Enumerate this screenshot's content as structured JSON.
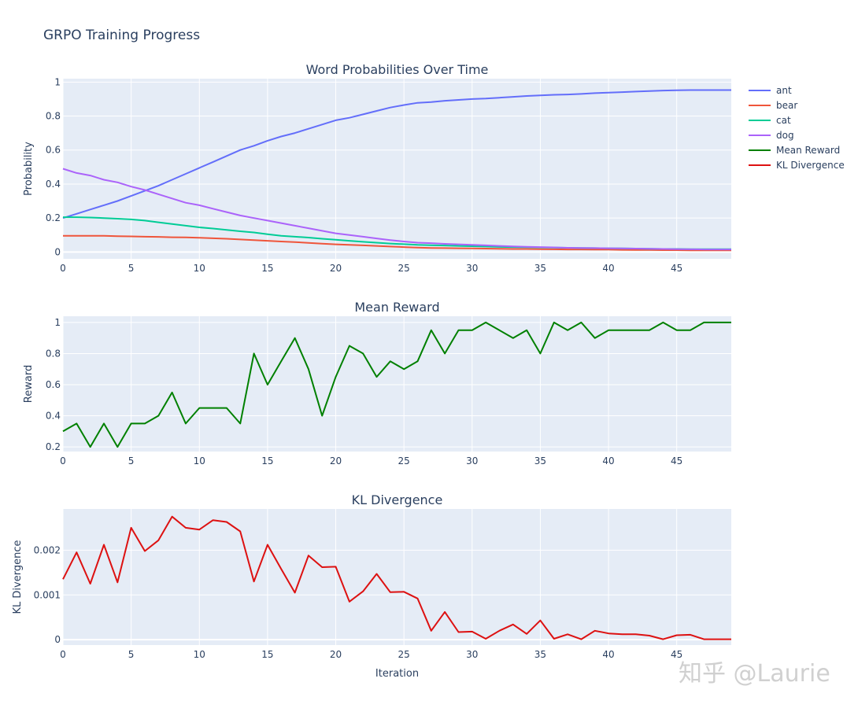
{
  "title": "GRPO Training Progress",
  "watermark": "知乎 @Laurie",
  "legend": [
    {
      "name": "ant",
      "color": "#636efa"
    },
    {
      "name": "bear",
      "color": "#ef553b"
    },
    {
      "name": "cat",
      "color": "#00cc96"
    },
    {
      "name": "dog",
      "color": "#ab63fa"
    },
    {
      "name": "Mean Reward",
      "color": "#008000"
    },
    {
      "name": "KL Divergence",
      "color": "#dd1111"
    }
  ],
  "chart_data": [
    {
      "type": "line",
      "title": "Word Probabilities Over Time",
      "xlabel": "",
      "ylabel": "Probability",
      "xlim": [
        0,
        49
      ],
      "ylim": [
        -0.04,
        1.02
      ],
      "xticks": [
        0,
        5,
        10,
        15,
        20,
        25,
        30,
        35,
        40,
        45
      ],
      "xtick_labels": [
        "0",
        "5",
        "10",
        "15",
        "20",
        "25",
        "30",
        "35",
        "40",
        "45"
      ],
      "yticks": [
        0,
        0.2,
        0.4,
        0.6,
        0.8,
        1
      ],
      "ytick_labels": [
        "0",
        "0.2",
        "0.4",
        "0.6",
        "0.8",
        "1"
      ],
      "x": [
        0,
        1,
        2,
        3,
        4,
        5,
        6,
        7,
        8,
        9,
        10,
        11,
        12,
        13,
        14,
        15,
        16,
        17,
        18,
        19,
        20,
        21,
        22,
        23,
        24,
        25,
        26,
        27,
        28,
        29,
        30,
        31,
        32,
        33,
        34,
        35,
        36,
        37,
        38,
        39,
        40,
        41,
        42,
        43,
        44,
        45,
        46,
        47,
        48,
        49
      ],
      "series": [
        {
          "name": "ant",
          "color": "#636efa",
          "values": [
            0.2,
            0.225,
            0.25,
            0.275,
            0.3,
            0.33,
            0.36,
            0.39,
            0.425,
            0.46,
            0.495,
            0.53,
            0.565,
            0.6,
            0.625,
            0.655,
            0.68,
            0.7,
            0.725,
            0.75,
            0.775,
            0.79,
            0.81,
            0.83,
            0.85,
            0.865,
            0.878,
            0.882,
            0.89,
            0.895,
            0.9,
            0.903,
            0.908,
            0.913,
            0.918,
            0.922,
            0.925,
            0.927,
            0.93,
            0.935,
            0.938,
            0.941,
            0.944,
            0.947,
            0.95,
            0.952,
            0.953,
            0.953,
            0.953,
            0.953
          ]
        },
        {
          "name": "bear",
          "color": "#ef553b",
          "values": [
            0.095,
            0.095,
            0.095,
            0.095,
            0.093,
            0.092,
            0.09,
            0.089,
            0.087,
            0.086,
            0.084,
            0.081,
            0.078,
            0.074,
            0.07,
            0.066,
            0.062,
            0.058,
            0.054,
            0.049,
            0.045,
            0.042,
            0.039,
            0.036,
            0.032,
            0.029,
            0.026,
            0.024,
            0.023,
            0.022,
            0.021,
            0.02,
            0.019,
            0.018,
            0.018,
            0.017,
            0.016,
            0.015,
            0.015,
            0.014,
            0.014,
            0.013,
            0.012,
            0.012,
            0.011,
            0.011,
            0.01,
            0.01,
            0.01,
            0.01
          ]
        },
        {
          "name": "cat",
          "color": "#00cc96",
          "values": [
            0.205,
            0.205,
            0.203,
            0.2,
            0.196,
            0.192,
            0.185,
            0.175,
            0.165,
            0.155,
            0.145,
            0.138,
            0.13,
            0.122,
            0.115,
            0.105,
            0.095,
            0.09,
            0.085,
            0.078,
            0.072,
            0.066,
            0.06,
            0.055,
            0.05,
            0.046,
            0.042,
            0.04,
            0.038,
            0.036,
            0.034,
            0.032,
            0.03,
            0.029,
            0.028,
            0.027,
            0.026,
            0.025,
            0.024,
            0.023,
            0.022,
            0.021,
            0.02,
            0.019,
            0.018,
            0.018,
            0.017,
            0.017,
            0.017,
            0.017
          ]
        },
        {
          "name": "dog",
          "color": "#ab63fa",
          "values": [
            0.49,
            0.465,
            0.45,
            0.425,
            0.41,
            0.385,
            0.365,
            0.34,
            0.315,
            0.29,
            0.275,
            0.255,
            0.235,
            0.215,
            0.2,
            0.185,
            0.17,
            0.155,
            0.14,
            0.125,
            0.11,
            0.1,
            0.09,
            0.08,
            0.07,
            0.062,
            0.055,
            0.052,
            0.048,
            0.045,
            0.042,
            0.039,
            0.036,
            0.033,
            0.031,
            0.029,
            0.027,
            0.025,
            0.024,
            0.023,
            0.022,
            0.021,
            0.02,
            0.019,
            0.018,
            0.017,
            0.016,
            0.015,
            0.015,
            0.015
          ]
        }
      ]
    },
    {
      "type": "line",
      "title": "Mean Reward",
      "xlabel": "",
      "ylabel": "Reward",
      "xlim": [
        0,
        49
      ],
      "ylim": [
        0.17,
        1.04
      ],
      "xticks": [
        0,
        5,
        10,
        15,
        20,
        25,
        30,
        35,
        40,
        45
      ],
      "xtick_labels": [
        "0",
        "5",
        "10",
        "15",
        "20",
        "25",
        "30",
        "35",
        "40",
        "45"
      ],
      "yticks": [
        0.2,
        0.4,
        0.6,
        0.8,
        1
      ],
      "ytick_labels": [
        "0.2",
        "0.4",
        "0.6",
        "0.8",
        "1"
      ],
      "x": [
        0,
        1,
        2,
        3,
        4,
        5,
        6,
        7,
        8,
        9,
        10,
        11,
        12,
        13,
        14,
        15,
        16,
        17,
        18,
        19,
        20,
        21,
        22,
        23,
        24,
        25,
        26,
        27,
        28,
        29,
        30,
        31,
        32,
        33,
        34,
        35,
        36,
        37,
        38,
        39,
        40,
        41,
        42,
        43,
        44,
        45,
        46,
        47,
        48,
        49
      ],
      "series": [
        {
          "name": "Mean Reward",
          "color": "#008000",
          "values": [
            0.3,
            0.35,
            0.2,
            0.35,
            0.2,
            0.35,
            0.35,
            0.4,
            0.55,
            0.35,
            0.45,
            0.45,
            0.45,
            0.35,
            0.8,
            0.6,
            0.75,
            0.9,
            0.7,
            0.4,
            0.65,
            0.85,
            0.8,
            0.65,
            0.75,
            0.7,
            0.75,
            0.95,
            0.8,
            0.95,
            0.95,
            1.0,
            0.95,
            0.9,
            0.95,
            0.8,
            1.0,
            0.95,
            1.0,
            0.9,
            0.95,
            0.95,
            0.95,
            0.95,
            1.0,
            0.95,
            0.95,
            1.0,
            1.0,
            1.0
          ]
        }
      ]
    },
    {
      "type": "line",
      "title": "KL Divergence",
      "xlabel": "Iteration",
      "ylabel": "KL Divergence",
      "xlim": [
        0,
        49
      ],
      "ylim": [
        -0.00012,
        0.00292
      ],
      "xticks": [
        0,
        5,
        10,
        15,
        20,
        25,
        30,
        35,
        40,
        45
      ],
      "xtick_labels": [
        "0",
        "5",
        "10",
        "15",
        "20",
        "25",
        "30",
        "35",
        "40",
        "45"
      ],
      "yticks": [
        0,
        0.001,
        0.002
      ],
      "ytick_labels": [
        "0",
        "0.001",
        "0.002"
      ],
      "x": [
        0,
        1,
        2,
        3,
        4,
        5,
        6,
        7,
        8,
        9,
        10,
        11,
        12,
        13,
        14,
        15,
        16,
        17,
        18,
        19,
        20,
        21,
        22,
        23,
        24,
        25,
        26,
        27,
        28,
        29,
        30,
        31,
        32,
        33,
        34,
        35,
        36,
        37,
        38,
        39,
        40,
        41,
        42,
        43,
        44,
        45,
        46,
        47,
        48,
        49
      ],
      "series": [
        {
          "name": "KL Divergence",
          "color": "#dd1111",
          "values": [
            0.00135,
            0.00195,
            0.00125,
            0.00212,
            0.00128,
            0.0025,
            0.00198,
            0.00222,
            0.00275,
            0.0025,
            0.00246,
            0.00267,
            0.00263,
            0.00242,
            0.0013,
            0.00212,
            0.00158,
            0.00105,
            0.00188,
            0.00162,
            0.00163,
            0.00085,
            0.00108,
            0.00147,
            0.00106,
            0.00107,
            0.00092,
            0.0002,
            0.00062,
            0.00017,
            0.00018,
            2e-05,
            0.0002,
            0.00034,
            0.00013,
            0.00043,
            2e-05,
            0.00012,
            1e-05,
            0.0002,
            0.00014,
            0.00012,
            0.00012,
            9e-05,
            1e-05,
            0.0001,
            0.00011,
            1e-05,
            1e-05,
            1e-05
          ]
        }
      ]
    }
  ]
}
